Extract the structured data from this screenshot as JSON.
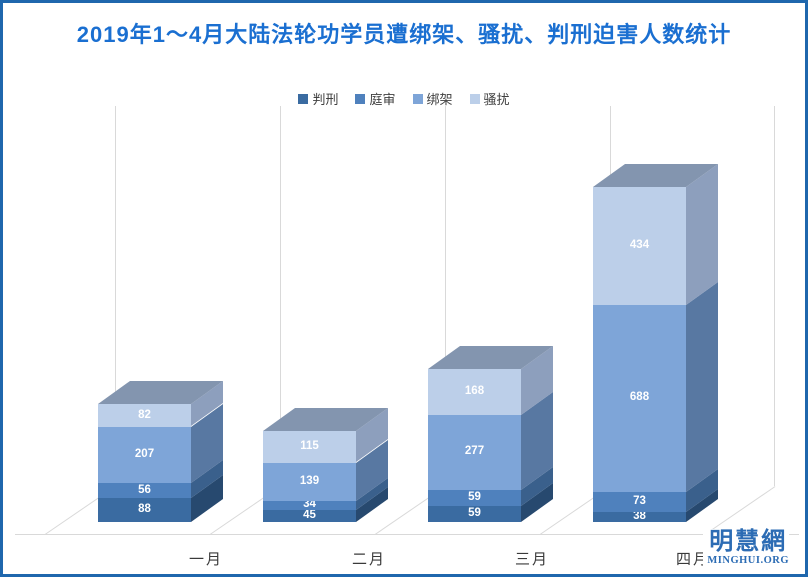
{
  "title": "2019年1～4月大陆法轮功学员遭绑架、骚扰、判刑迫害人数统计",
  "logo": {
    "line1": "明慧網",
    "line2": "MINGHUI.ORG"
  },
  "colors": {
    "title": "#1a6fd1",
    "border": "#1f67ad",
    "logo": "#2c6cb4",
    "gridline": "#d9d9d9",
    "top_face": "#8395af"
  },
  "chart_data": {
    "type": "bar",
    "subtype": "3d-stacked-column",
    "title": "2019年1～4月大陆法轮功学员遭绑架、骚扰、判刑迫害人数统计",
    "categories": [
      "一月",
      "二月",
      "三月",
      "四月"
    ],
    "series": [
      {
        "name": "判刑",
        "values": [
          88,
          45,
          59,
          38
        ],
        "color": "#3a6ba1",
        "side_color": "#27496f"
      },
      {
        "name": "庭审",
        "values": [
          56,
          34,
          59,
          73
        ],
        "color": "#4f81bd",
        "side_color": "#3a608c"
      },
      {
        "name": "绑架",
        "values": [
          207,
          139,
          277,
          688
        ],
        "color": "#7ea5d8",
        "side_color": "#5878a2"
      },
      {
        "name": "骚扰",
        "values": [
          82,
          115,
          168,
          434
        ],
        "color": "#bccfe9",
        "side_color": "#8d9fbd"
      }
    ],
    "totals_by_month": [
      433,
      333,
      563,
      1233
    ],
    "data_labels": "on-segment, white",
    "legend_position": "top-center",
    "gridlines": "vertical, light gray",
    "xlabel": "",
    "ylabel": ""
  }
}
